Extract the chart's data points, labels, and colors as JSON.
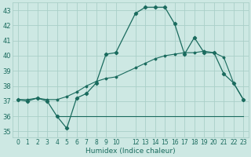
{
  "xlabel": "Humidex (Indice chaleur)",
  "xlim": [
    -0.5,
    23.5
  ],
  "ylim": [
    34.6,
    43.5
  ],
  "yticks": [
    35,
    36,
    37,
    38,
    39,
    40,
    41,
    42,
    43
  ],
  "xticks": [
    0,
    1,
    2,
    3,
    4,
    5,
    6,
    7,
    8,
    9,
    10,
    12,
    13,
    14,
    15,
    16,
    17,
    18,
    19,
    20,
    21,
    22,
    23
  ],
  "xtick_labels": [
    "0",
    "1",
    "2",
    "3",
    "4",
    "5",
    "6",
    "7",
    "8",
    "9",
    "10",
    "12",
    "13",
    "14",
    "15",
    "16",
    "17",
    "18",
    "19",
    "20",
    "21",
    "22",
    "23"
  ],
  "bg_color": "#cde8e3",
  "grid_color": "#aacfc8",
  "line_color": "#1a6b5e",
  "line1_x": [
    0,
    1,
    2,
    3,
    4,
    5,
    6,
    7,
    8,
    9,
    10,
    12,
    13,
    14,
    15,
    16,
    17,
    18,
    19,
    20,
    21,
    22,
    23
  ],
  "line1_y": [
    37.1,
    37.0,
    37.2,
    37.0,
    36.0,
    35.2,
    37.2,
    37.5,
    38.2,
    40.1,
    40.2,
    42.8,
    43.2,
    43.2,
    43.2,
    42.1,
    40.1,
    41.2,
    40.2,
    40.2,
    38.8,
    38.2,
    37.1
  ],
  "line2_x": [
    4,
    5,
    22,
    23
  ],
  "line2_y": [
    36.0,
    36.0,
    36.0,
    36.0
  ],
  "line3_x": [
    0,
    1,
    2,
    3,
    4,
    5,
    6,
    7,
    8,
    9,
    10,
    12,
    13,
    14,
    15,
    16,
    17,
    18,
    19,
    20,
    21,
    22,
    23
  ],
  "line3_y": [
    37.1,
    37.1,
    37.2,
    37.1,
    37.1,
    37.3,
    37.6,
    38.0,
    38.3,
    38.5,
    38.6,
    39.2,
    39.5,
    39.8,
    40.0,
    40.1,
    40.2,
    40.2,
    40.3,
    40.2,
    39.9,
    38.2,
    37.1
  ],
  "xlabel_fontsize": 6.5,
  "tick_fontsize": 5.5
}
